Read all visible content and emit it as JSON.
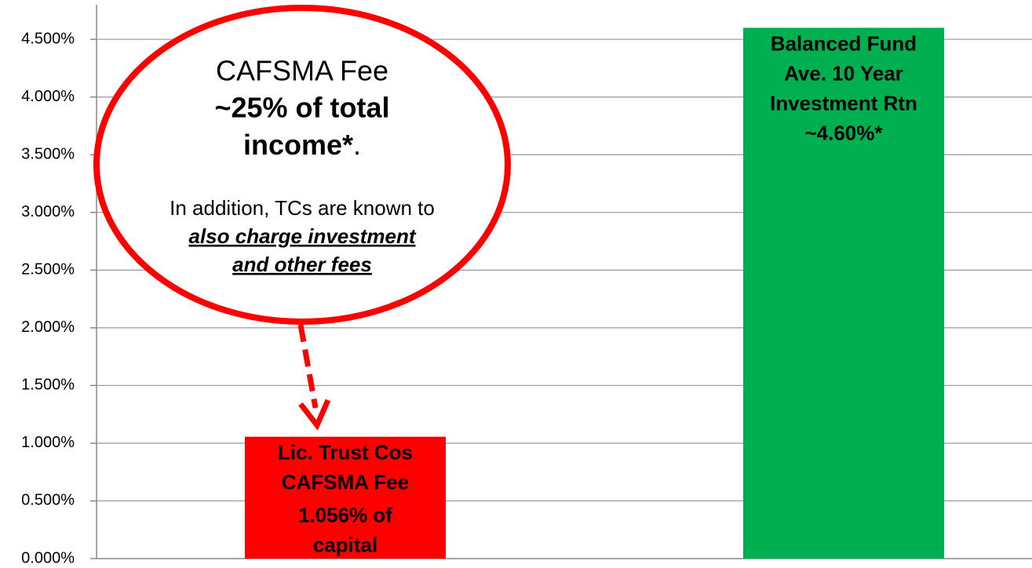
{
  "chart_data": {
    "type": "bar",
    "categories": [
      null,
      null
    ],
    "values": [
      1.056,
      4.6
    ],
    "colors": [
      "#ff0000",
      "#00b050"
    ],
    "ylim": [
      0,
      4.8
    ],
    "yticks": [
      {
        "value": 0,
        "label": "0.000%"
      },
      {
        "value": 0.5,
        "label": "0.500%"
      },
      {
        "value": 1,
        "label": "1.000%"
      },
      {
        "value": 1.5,
        "label": "1.500%"
      },
      {
        "value": 2,
        "label": "2.000%"
      },
      {
        "value": 2.5,
        "label": "2.500%"
      },
      {
        "value": 3,
        "label": "3.000%"
      },
      {
        "value": 3.5,
        "label": "3.500%"
      },
      {
        "value": 4,
        "label": "4.000%"
      },
      {
        "value": 4.5,
        "label": "4.500%"
      }
    ],
    "grid": true,
    "bar_labels": [
      [
        "Lic. Trust Cos",
        "CAFSMA Fee",
        "1.056% of",
        "capital"
      ],
      [
        "Balanced Fund",
        "Ave. 10 Year",
        "Investment Rtn",
        "~4.60%*"
      ]
    ],
    "callout": {
      "title": "CAFSMA Fee",
      "bold_line": "~25% of total",
      "bold_tail": "income*",
      "tail_punct": ".",
      "note": "In addition, TCs are known to",
      "emphasis": [
        "also charge investment",
        "and other fees"
      ]
    }
  }
}
